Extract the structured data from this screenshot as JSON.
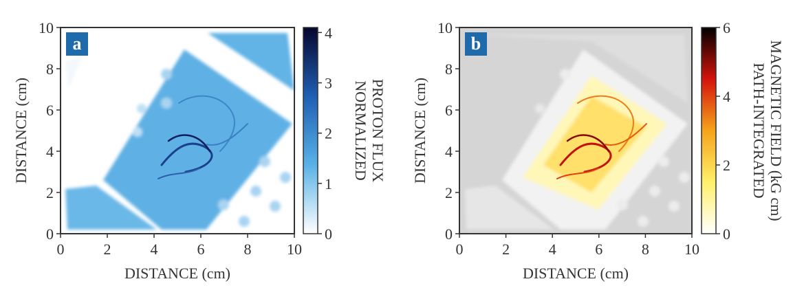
{
  "chart_data": [
    {
      "type": "heatmap",
      "panel_label": "a",
      "xlabel": "DISTANCE (cm)",
      "ylabel": "DISTANCE (cm)",
      "xlim": [
        0,
        10
      ],
      "ylim": [
        0,
        10
      ],
      "xticks": [
        0,
        2,
        4,
        6,
        8,
        10
      ],
      "yticks": [
        0,
        2,
        4,
        6,
        8,
        10
      ],
      "colorbar_label": [
        "NORMALIZED",
        "PROTON FLUX"
      ],
      "clim": [
        0,
        4.1
      ],
      "cticks": [
        0,
        1,
        2,
        3,
        4
      ],
      "colormap": [
        "#ffffff",
        "#59b2e6",
        "#1f5fb4",
        "#06062e"
      ]
    },
    {
      "type": "heatmap",
      "panel_label": "b",
      "xlabel": "DISTANCE (cm)",
      "ylabel": "DISTANCE (cm)",
      "xlim": [
        0,
        10
      ],
      "ylim": [
        0,
        10
      ],
      "xticks": [
        0,
        2,
        4,
        6,
        8,
        10
      ],
      "yticks": [
        0,
        2,
        4,
        6,
        8,
        10
      ],
      "colorbar_label": [
        "PATH-INTEGRATED",
        "MAGNETIC FIELD (kG cm)"
      ],
      "clim": [
        0,
        6
      ],
      "cticks": [
        0,
        2,
        4,
        6
      ],
      "colormap": [
        "#ffffff",
        "#fff06a",
        "#f5a31c",
        "#d4130c",
        "#000000"
      ]
    }
  ]
}
